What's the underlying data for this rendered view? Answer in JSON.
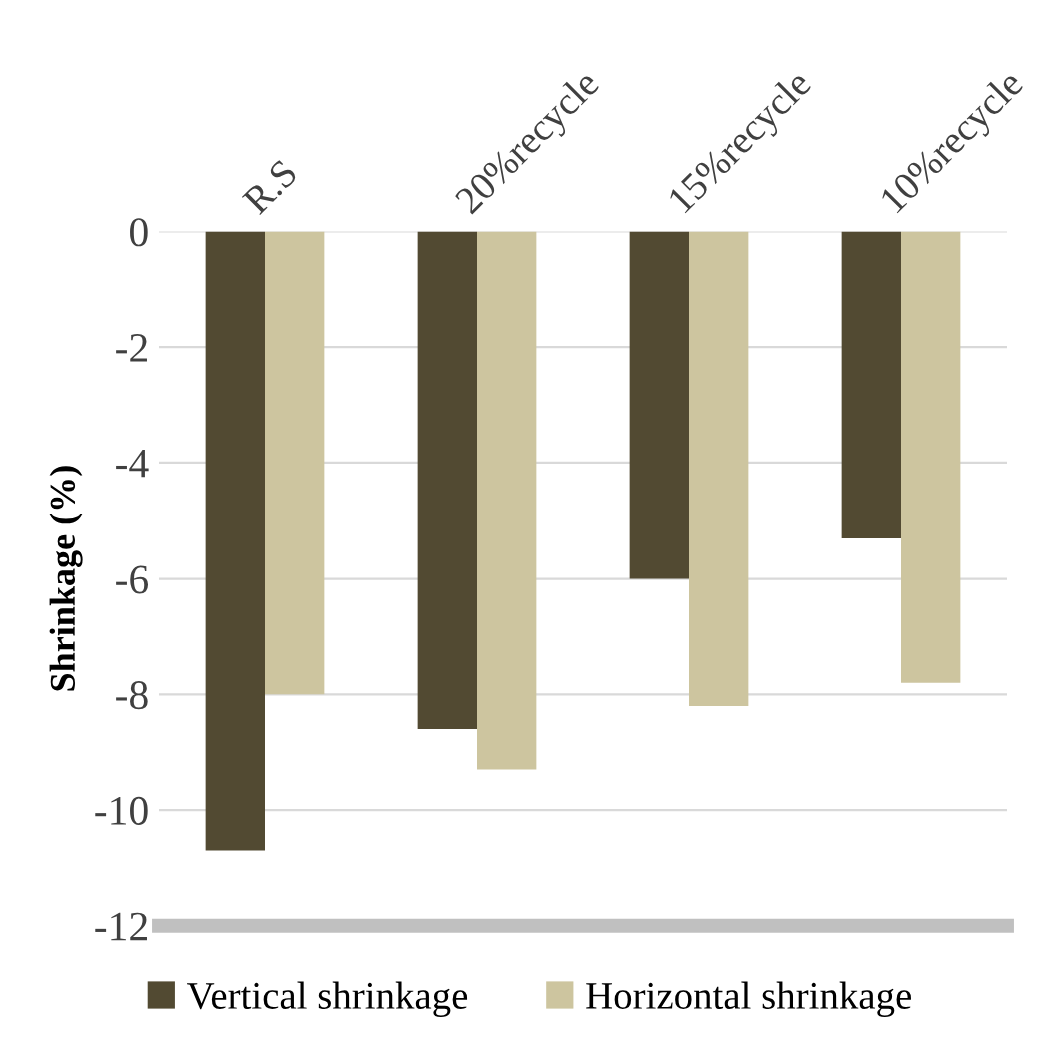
{
  "chart_data": {
    "type": "bar",
    "ylabel": "Shrinkage (%)",
    "categories": [
      "R.S",
      "20%recycle",
      "15%recycle",
      "10%recycle"
    ],
    "series": [
      {
        "name": "Vertical shrinkage",
        "color": "#524a32",
        "values": [
          -10.7,
          -8.6,
          -6.0,
          -5.3
        ]
      },
      {
        "name": "Horizontal shrinkage",
        "color": "#cdc59f",
        "values": [
          -8.0,
          -9.3,
          -8.2,
          -7.8
        ]
      }
    ],
    "ylim": [
      -12,
      0
    ],
    "yticks": [
      -12,
      -10,
      -8,
      -6,
      -4,
      -2,
      0
    ],
    "grid": "y",
    "legend": "bottom"
  }
}
